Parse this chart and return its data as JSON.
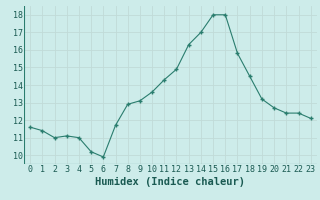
{
  "x": [
    0,
    1,
    2,
    3,
    4,
    5,
    6,
    7,
    8,
    9,
    10,
    11,
    12,
    13,
    14,
    15,
    16,
    17,
    18,
    19,
    20,
    21,
    22,
    23
  ],
  "y": [
    11.6,
    11.4,
    11.0,
    11.1,
    11.0,
    10.2,
    9.9,
    11.7,
    12.9,
    13.1,
    13.6,
    14.3,
    14.9,
    16.3,
    17.0,
    18.0,
    18.0,
    15.8,
    14.5,
    13.2,
    12.7,
    12.4,
    12.4,
    12.1
  ],
  "xlabel": "Humidex (Indice chaleur)",
  "ylim": [
    9.5,
    18.5
  ],
  "xlim": [
    -0.5,
    23.5
  ],
  "yticks": [
    10,
    11,
    12,
    13,
    14,
    15,
    16,
    17,
    18
  ],
  "xticks": [
    0,
    1,
    2,
    3,
    4,
    5,
    6,
    7,
    8,
    9,
    10,
    11,
    12,
    13,
    14,
    15,
    16,
    17,
    18,
    19,
    20,
    21,
    22,
    23
  ],
  "line_color": "#2a7d6e",
  "marker_color": "#2a7d6e",
  "bg_color": "#cdecea",
  "grid_color": "#c0dbd8",
  "tick_label_fontsize": 6,
  "xlabel_fontsize": 7.5
}
